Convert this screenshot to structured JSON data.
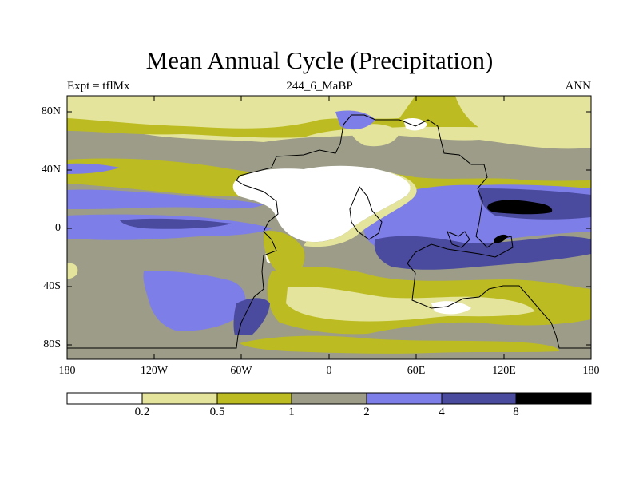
{
  "title": "Mean Annual Cycle (Precipitation)",
  "left_label": "Expt = tflMx",
  "center_label": "244_6_MaBP",
  "right_label": "ANN",
  "lat_ticks": [
    "80N",
    "40N",
    "0",
    "40S",
    "80S"
  ],
  "lon_ticks": [
    "180",
    "120W",
    "60W",
    "0",
    "60E",
    "120E",
    "180"
  ],
  "colorbar": {
    "levels": [
      "0.2",
      "0.5",
      "1",
      "2",
      "4",
      "8"
    ],
    "colors": [
      "#ffffff",
      "#e4e49c",
      "#bcbc22",
      "#9c9c88",
      "#7e7ee8",
      "#4a4a9e",
      "#000000"
    ]
  },
  "chart_data": {
    "type": "heatmap",
    "title": "Mean Annual Cycle (Precipitation)",
    "variable": "Precipitation",
    "experiment": "tflMx",
    "period": "244_6_MaBP",
    "season": "ANN",
    "xlim": [
      -180,
      180
    ],
    "ylim": [
      -90,
      90
    ],
    "contour_levels": [
      0.2,
      0.5,
      1,
      2,
      4,
      8
    ],
    "legend": "bottom"
  }
}
